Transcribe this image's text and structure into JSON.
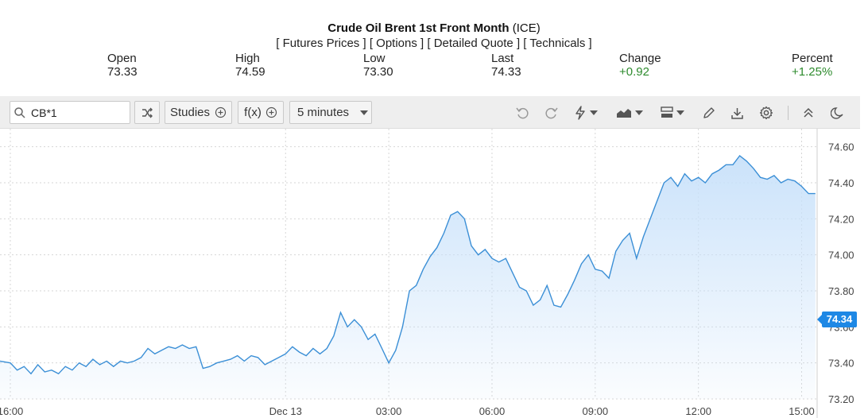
{
  "header": {
    "name": "Crude Oil Brent 1st Front Month",
    "exchange": "(ICE)",
    "links": [
      "[ Futures Prices ]",
      "[ Options ]",
      "[ Detailed Quote ]",
      "[ Technicals ]"
    ]
  },
  "quote": {
    "open": {
      "label": "Open",
      "value": "73.33"
    },
    "high": {
      "label": "High",
      "value": "74.59"
    },
    "low": {
      "label": "Low",
      "value": "73.30"
    },
    "last": {
      "label": "Last",
      "value": "74.33"
    },
    "change": {
      "label": "Change",
      "value": "+0.92"
    },
    "percent": {
      "label": "Percent",
      "value": "+1.25%"
    }
  },
  "toolbar": {
    "symbol_value": "CB*1",
    "studies_label": "Studies",
    "fx_label": "f(x)",
    "interval_label": "5 minutes",
    "icons": [
      "search-icon",
      "compare-icon",
      "plus-circle-icon",
      "undo-icon",
      "redo-icon",
      "lightning-icon",
      "chart-style-icon",
      "layout-icon",
      "pencil-icon",
      "download-icon",
      "gear-icon",
      "collapse-icon",
      "dark-mode-icon"
    ]
  },
  "colors": {
    "line": "#3b8fd6",
    "fill": "#cfe6fb",
    "up": "#2e8b2e",
    "tag": "#1e88e5"
  },
  "current_price_tag": "74.34",
  "chart_data": {
    "type": "area",
    "xlabel": "",
    "ylabel": "",
    "ylim": [
      73.2,
      74.7
    ],
    "x_tick_labels": [
      "16:00",
      "Dec 13",
      "03:00",
      "06:00",
      "09:00",
      "12:00",
      "15:00"
    ],
    "y_tick_labels": [
      "74.60",
      "74.40",
      "74.20",
      "74.00",
      "73.80",
      "73.60",
      "73.40",
      "73.20"
    ],
    "x_range_hours": [
      -8.3,
      15.45
    ],
    "grid": true,
    "series": [
      {
        "values": [
          [
            -8.3,
            73.41
          ],
          [
            -8.0,
            73.4
          ],
          [
            -7.8,
            73.36
          ],
          [
            -7.6,
            73.38
          ],
          [
            -7.4,
            73.34
          ],
          [
            -7.2,
            73.39
          ],
          [
            -7.0,
            73.35
          ],
          [
            -6.8,
            73.36
          ],
          [
            -6.6,
            73.34
          ],
          [
            -6.4,
            73.38
          ],
          [
            -6.2,
            73.36
          ],
          [
            -6.0,
            73.4
          ],
          [
            -5.8,
            73.38
          ],
          [
            -5.6,
            73.42
          ],
          [
            -5.4,
            73.39
          ],
          [
            -5.2,
            73.41
          ],
          [
            -5.0,
            73.38
          ],
          [
            -4.8,
            73.41
          ],
          [
            -4.6,
            73.4
          ],
          [
            -4.4,
            73.41
          ],
          [
            -4.2,
            73.43
          ],
          [
            -4.0,
            73.48
          ],
          [
            -3.8,
            73.45
          ],
          [
            -3.6,
            73.47
          ],
          [
            -3.4,
            73.49
          ],
          [
            -3.2,
            73.48
          ],
          [
            -3.0,
            73.5
          ],
          [
            -2.8,
            73.48
          ],
          [
            -2.6,
            73.49
          ],
          [
            -2.4,
            73.37
          ],
          [
            -2.2,
            73.38
          ],
          [
            -2.0,
            73.4
          ],
          [
            -1.8,
            73.41
          ],
          [
            -1.6,
            73.42
          ],
          [
            -1.4,
            73.44
          ],
          [
            -1.2,
            73.41
          ],
          [
            -1.0,
            73.44
          ],
          [
            -0.8,
            73.43
          ],
          [
            -0.6,
            73.39
          ],
          [
            -0.4,
            73.41
          ],
          [
            -0.2,
            73.43
          ],
          [
            0.0,
            73.45
          ],
          [
            0.2,
            73.49
          ],
          [
            0.4,
            73.46
          ],
          [
            0.6,
            73.44
          ],
          [
            0.8,
            73.48
          ],
          [
            1.0,
            73.45
          ],
          [
            1.2,
            73.48
          ],
          [
            1.4,
            73.55
          ],
          [
            1.6,
            73.68
          ],
          [
            1.8,
            73.6
          ],
          [
            2.0,
            73.64
          ],
          [
            2.2,
            73.6
          ],
          [
            2.4,
            73.53
          ],
          [
            2.6,
            73.56
          ],
          [
            2.8,
            73.48
          ],
          [
            3.0,
            73.4
          ],
          [
            3.2,
            73.47
          ],
          [
            3.4,
            73.6
          ],
          [
            3.6,
            73.8
          ],
          [
            3.8,
            73.83
          ],
          [
            4.0,
            73.92
          ],
          [
            4.2,
            73.99
          ],
          [
            4.4,
            74.04
          ],
          [
            4.6,
            74.12
          ],
          [
            4.8,
            74.22
          ],
          [
            5.0,
            74.24
          ],
          [
            5.2,
            74.2
          ],
          [
            5.4,
            74.05
          ],
          [
            5.6,
            74.0
          ],
          [
            5.8,
            74.03
          ],
          [
            6.0,
            73.98
          ],
          [
            6.2,
            73.96
          ],
          [
            6.4,
            73.98
          ],
          [
            6.6,
            73.9
          ],
          [
            6.8,
            73.82
          ],
          [
            7.0,
            73.8
          ],
          [
            7.2,
            73.72
          ],
          [
            7.4,
            73.75
          ],
          [
            7.6,
            73.83
          ],
          [
            7.8,
            73.72
          ],
          [
            8.0,
            73.71
          ],
          [
            8.2,
            73.78
          ],
          [
            8.4,
            73.86
          ],
          [
            8.6,
            73.95
          ],
          [
            8.8,
            74.0
          ],
          [
            9.0,
            73.92
          ],
          [
            9.2,
            73.91
          ],
          [
            9.4,
            73.87
          ],
          [
            9.6,
            74.02
          ],
          [
            9.8,
            74.08
          ],
          [
            10.0,
            74.12
          ],
          [
            10.2,
            73.98
          ],
          [
            10.4,
            74.1
          ],
          [
            10.6,
            74.2
          ],
          [
            10.8,
            74.3
          ],
          [
            11.0,
            74.4
          ],
          [
            11.2,
            74.43
          ],
          [
            11.4,
            74.38
          ],
          [
            11.6,
            74.45
          ],
          [
            11.8,
            74.41
          ],
          [
            12.0,
            74.43
          ],
          [
            12.2,
            74.4
          ],
          [
            12.4,
            74.45
          ],
          [
            12.6,
            74.47
          ],
          [
            12.8,
            74.5
          ],
          [
            13.0,
            74.5
          ],
          [
            13.2,
            74.55
          ],
          [
            13.4,
            74.52
          ],
          [
            13.6,
            74.48
          ],
          [
            13.8,
            74.43
          ],
          [
            14.0,
            74.42
          ],
          [
            14.2,
            74.44
          ],
          [
            14.4,
            74.4
          ],
          [
            14.6,
            74.42
          ],
          [
            14.8,
            74.41
          ],
          [
            15.0,
            74.38
          ],
          [
            15.2,
            74.34
          ],
          [
            15.4,
            74.34
          ]
        ]
      }
    ]
  }
}
